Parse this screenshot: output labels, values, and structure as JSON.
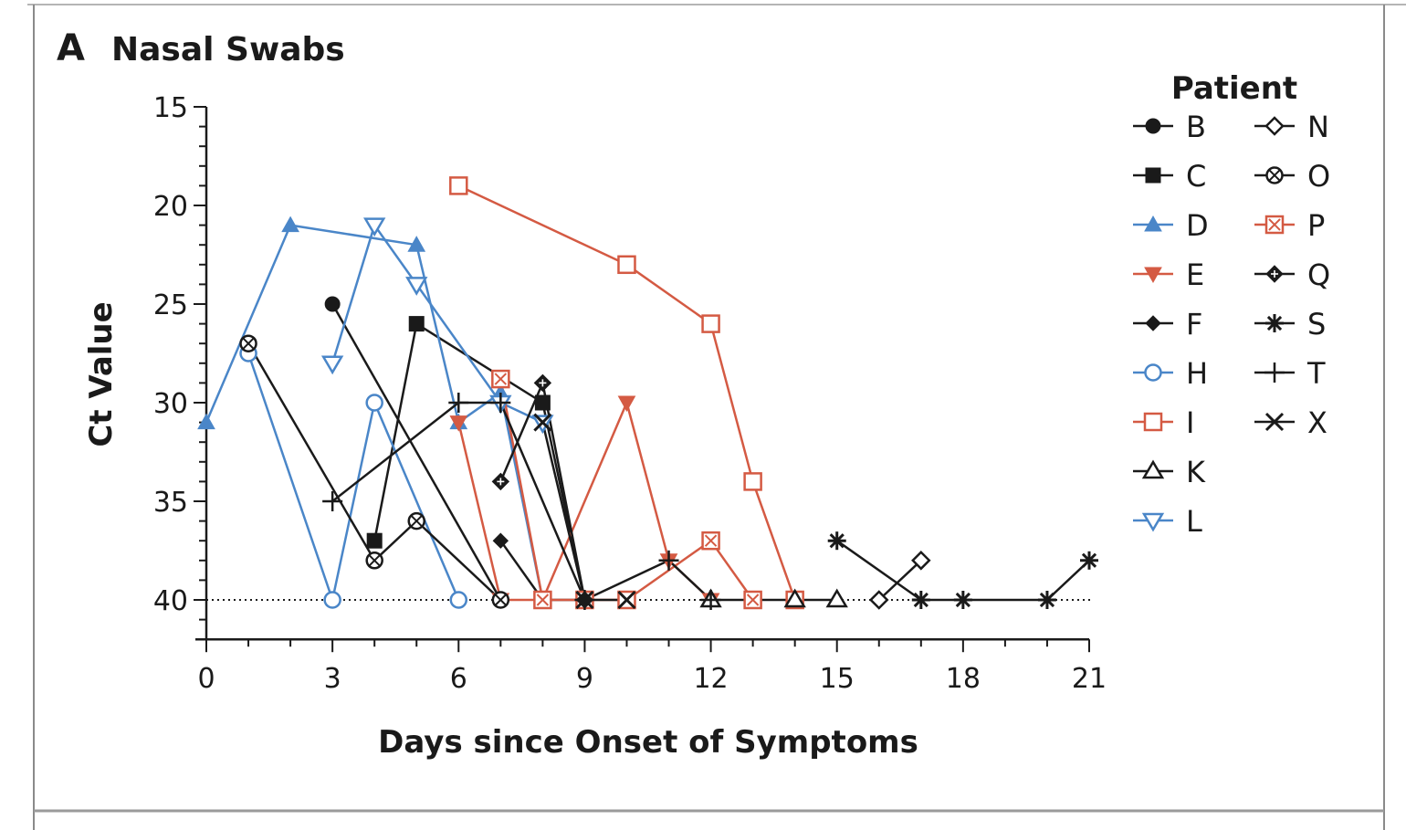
{
  "panel": {
    "letter": "A",
    "title": "Nasal Swabs"
  },
  "chart_data": {
    "type": "line",
    "title": "Nasal Swabs",
    "xlabel": "Days since Onset of Symptoms",
    "ylabel": "Ct Value",
    "xlim": [
      0,
      21
    ],
    "ylim": [
      15,
      42
    ],
    "y_inverted": true,
    "xticks": [
      0,
      3,
      6,
      9,
      12,
      15,
      18,
      21
    ],
    "yticks": [
      15,
      20,
      25,
      30,
      35,
      40
    ],
    "reference_line": {
      "y": 40,
      "style": "dotted"
    },
    "legend": {
      "title": "Patient",
      "placement": "right"
    },
    "series": [
      {
        "name": "B",
        "marker": "circle-filled",
        "color": "#1a1a1a",
        "points": [
          [
            3,
            25
          ],
          [
            7,
            40
          ]
        ]
      },
      {
        "name": "C",
        "marker": "square-filled",
        "color": "#1a1a1a",
        "points": [
          [
            4,
            37
          ],
          [
            5,
            26
          ],
          [
            8,
            30
          ],
          [
            9,
            40
          ]
        ]
      },
      {
        "name": "D",
        "marker": "triangle-up-filled",
        "color": "#4a86c8",
        "points": [
          [
            0,
            31
          ],
          [
            2,
            21
          ],
          [
            5,
            22
          ],
          [
            6,
            31
          ],
          [
            7,
            29.5
          ],
          [
            8,
            40
          ]
        ]
      },
      {
        "name": "E",
        "marker": "triangle-down-filled",
        "color": "#d45a43",
        "points": [
          [
            6,
            31
          ],
          [
            7,
            40
          ],
          [
            8,
            40
          ],
          [
            10,
            30
          ],
          [
            11,
            38
          ],
          [
            12,
            40
          ]
        ]
      },
      {
        "name": "F",
        "marker": "diamond-filled",
        "color": "#1a1a1a",
        "points": [
          [
            7,
            37
          ],
          [
            8,
            40
          ],
          [
            9,
            40
          ]
        ]
      },
      {
        "name": "H",
        "marker": "circle-open",
        "color": "#4a86c8",
        "points": [
          [
            1,
            27.5
          ],
          [
            3,
            40
          ],
          [
            4,
            30
          ],
          [
            6,
            40
          ]
        ]
      },
      {
        "name": "I",
        "marker": "square-open",
        "color": "#d45a43",
        "points": [
          [
            6,
            19
          ],
          [
            10,
            23
          ],
          [
            12,
            26
          ],
          [
            13,
            34
          ],
          [
            14,
            40
          ]
        ]
      },
      {
        "name": "K",
        "marker": "triangle-up-open",
        "color": "#1a1a1a",
        "points": [
          [
            12,
            40
          ],
          [
            14,
            40
          ],
          [
            15,
            40
          ]
        ]
      },
      {
        "name": "L",
        "marker": "triangle-down-open",
        "color": "#4a86c8",
        "points": [
          [
            3,
            28
          ],
          [
            4,
            21
          ],
          [
            5,
            24
          ],
          [
            7,
            30
          ],
          [
            8,
            31
          ]
        ]
      },
      {
        "name": "N",
        "marker": "diamond-open",
        "color": "#1a1a1a",
        "points": [
          [
            16,
            40
          ],
          [
            17,
            38
          ]
        ]
      },
      {
        "name": "O",
        "marker": "circle-cross",
        "color": "#1a1a1a",
        "points": [
          [
            1,
            27
          ],
          [
            4,
            38
          ],
          [
            5,
            36
          ],
          [
            7,
            40
          ]
        ]
      },
      {
        "name": "P",
        "marker": "square-cross",
        "color": "#d45a43",
        "points": [
          [
            7,
            28.8
          ],
          [
            8,
            40
          ],
          [
            9,
            40
          ],
          [
            10,
            40
          ],
          [
            12,
            37
          ],
          [
            13,
            40
          ]
        ]
      },
      {
        "name": "Q",
        "marker": "diamond-cross",
        "color": "#1a1a1a",
        "points": [
          [
            7,
            34
          ],
          [
            8,
            29
          ],
          [
            9,
            40
          ]
        ]
      },
      {
        "name": "S",
        "marker": "asterisk",
        "color": "#1a1a1a",
        "points": [
          [
            15,
            37
          ],
          [
            17,
            40
          ],
          [
            18,
            40
          ],
          [
            20,
            40
          ],
          [
            21,
            38
          ]
        ]
      },
      {
        "name": "T",
        "marker": "plus",
        "color": "#1a1a1a",
        "points": [
          [
            3,
            35
          ],
          [
            6,
            30
          ],
          [
            7,
            30
          ],
          [
            9,
            40
          ],
          [
            11,
            38
          ],
          [
            12,
            40
          ]
        ]
      },
      {
        "name": "X",
        "marker": "x-cross",
        "color": "#1a1a1a",
        "points": [
          [
            8,
            31
          ],
          [
            9,
            40
          ],
          [
            10,
            40
          ]
        ]
      }
    ]
  }
}
